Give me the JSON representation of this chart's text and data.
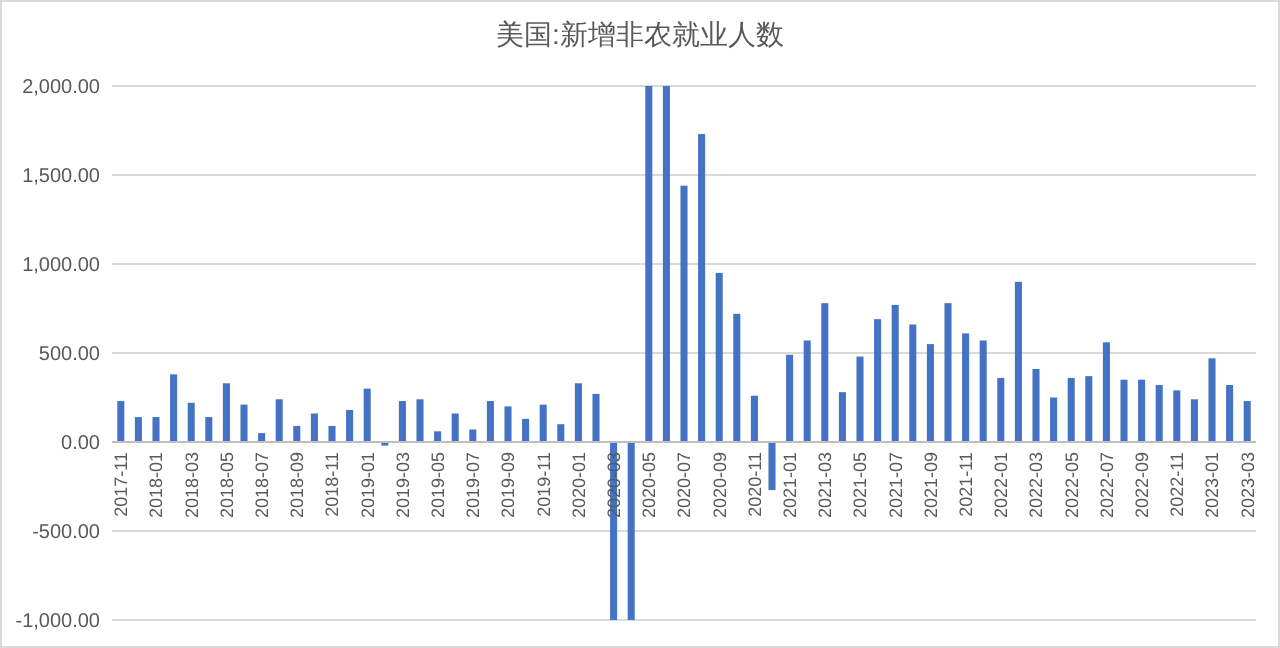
{
  "chart_data": {
    "type": "bar",
    "title": "美国:新增非农就业人数",
    "categories": [
      "2017-11",
      null,
      "2018-01",
      null,
      "2018-03",
      null,
      "2018-05",
      null,
      "2018-07",
      null,
      "2018-09",
      null,
      "2018-11",
      null,
      "2019-01",
      null,
      "2019-03",
      null,
      "2019-05",
      null,
      "2019-07",
      null,
      "2019-09",
      null,
      "2019-11",
      null,
      "2020-01",
      null,
      "2020-03",
      null,
      "2020-05",
      null,
      "2020-07",
      null,
      "2020-09",
      null,
      "2020-11",
      null,
      "2021-01",
      null,
      "2021-03",
      null,
      "2021-05",
      null,
      "2021-07",
      null,
      "2021-09",
      null,
      "2021-11",
      null,
      "2022-01",
      null,
      "2022-03",
      null,
      "2022-05",
      null,
      "2022-07",
      null,
      "2022-09",
      null,
      "2022-11",
      null,
      "2023-01",
      null,
      "2023-03"
    ],
    "values": [
      230,
      140,
      140,
      380,
      220,
      140,
      330,
      210,
      50,
      240,
      90,
      160,
      90,
      180,
      300,
      -20,
      230,
      240,
      60,
      160,
      70,
      230,
      200,
      130,
      210,
      100,
      330,
      270,
      -1000,
      -1000,
      2000,
      2000,
      1440,
      1730,
      950,
      720,
      260,
      -270,
      490,
      570,
      780,
      280,
      480,
      690,
      770,
      660,
      550,
      780,
      610,
      570,
      360,
      900,
      410,
      250,
      360,
      370,
      560,
      350,
      350,
      320,
      290,
      240,
      470,
      320,
      230
    ],
    "color": "#4472c4",
    "ylim": [
      -1000,
      2000
    ],
    "yticks": [
      {
        "value": -1000,
        "label": "-1,000.00"
      },
      {
        "value": -500,
        "label": "-500.00"
      },
      {
        "value": 0,
        "label": "0.00"
      },
      {
        "value": 500,
        "label": "500.00"
      },
      {
        "value": 1000,
        "label": "1,000.00"
      },
      {
        "value": 1500,
        "label": "1,500.00"
      },
      {
        "value": 2000,
        "label": "2,000.00"
      }
    ],
    "grid": "y"
  }
}
